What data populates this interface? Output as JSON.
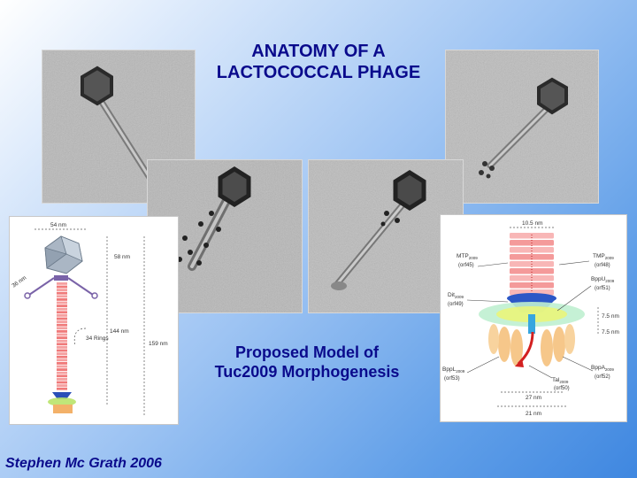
{
  "slide": {
    "title_line1": "ANATOMY OF A",
    "title_line2": "LACTOCOCCAL PHAGE",
    "subtitle_line1": "Proposed Model of",
    "subtitle_line2": "Tuc2009 Morphogenesis",
    "author": "Stephen Mc Grath 2006",
    "colors": {
      "title": "#0a0a8c",
      "background_light": "#dbe9fb",
      "background_dark": "#3f87e0"
    }
  },
  "left_model": {
    "labels": {
      "head_width": "54 nm",
      "head_side": "36 nm",
      "tail_top": "58 nm",
      "tail_length": "144 nm",
      "rings": "34 Rings",
      "total_length": "159 nm"
    }
  },
  "right_model": {
    "labels": {
      "tail_width": "10.5 nm",
      "mtp_name": "MTP",
      "mtp_sub": "2009",
      "mtp_orf": "(orf45)",
      "tmp_name": "TMP",
      "tmp_sub": "2009",
      "tmp_orf": "(orf48)",
      "dit_name": "Dit",
      "dit_sub": "2009",
      "dit_orf": "(orf49)",
      "bppu_name": "BppU",
      "bppu_sub": "2009",
      "bppu_orf": "(orf51)",
      "gap1": "7.5 nm",
      "gap2": "7.5 nm",
      "bppl_name": "BppL",
      "bppl_sub": "2009",
      "bppl_orf": "(orf53)",
      "bppa_name": "BppA",
      "bppa_sub": "2009",
      "bppa_orf": "(orf52)",
      "tal_name": "Tal",
      "tal_sub": "2009",
      "tal_orf": "(orf50)",
      "width_27": "27 nm",
      "width_21": "21 nm"
    }
  }
}
